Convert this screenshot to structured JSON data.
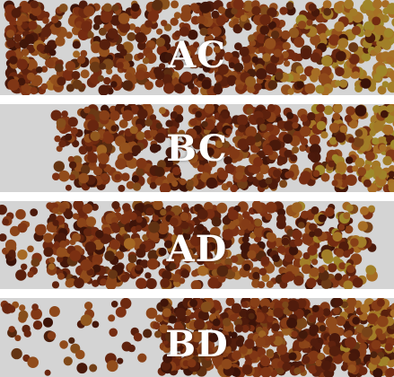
{
  "panels": [
    {
      "label": "AC"
    },
    {
      "label": "BC"
    },
    {
      "label": "AD"
    },
    {
      "label": "BD"
    }
  ],
  "colors": {
    "background": "#d4d4d4",
    "gap": "#ffffff",
    "label": "#ffffff",
    "particle_dark": "#3a1208",
    "particle_mid": "#7a2e12",
    "particle_light": "#a86a24",
    "particle_gold": "#9e8a2a"
  }
}
